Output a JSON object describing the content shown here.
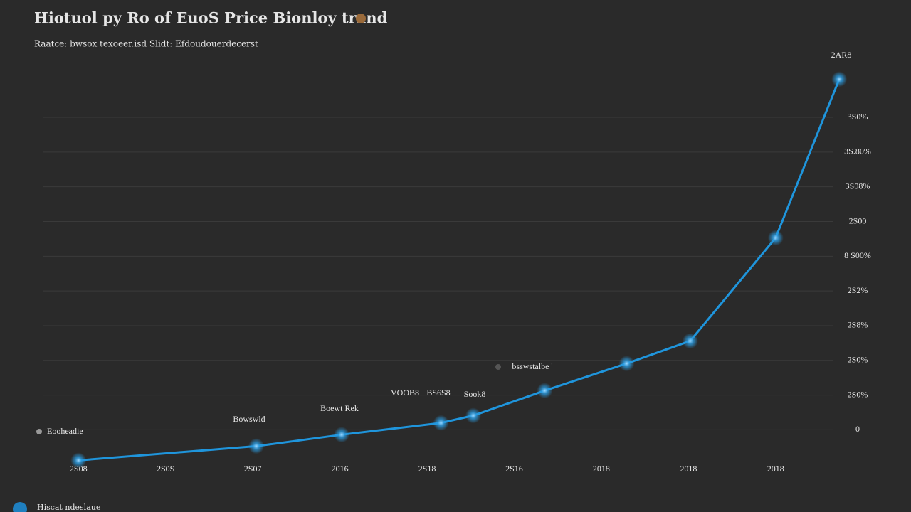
{
  "chart_data": {
    "type": "line",
    "title": "Hiotuol py Ro of EuoS Price Bionloy trand",
    "subtitle": "Raatce: bwsox texoeer.isd Slidt: Efdoudouerdecerst",
    "color": "#1f95dc",
    "grid": true,
    "x": [
      0,
      2.04,
      3.02,
      4.16,
      4.53,
      5.35,
      6.29,
      7.02,
      8,
      8.73
    ],
    "values": [
      -0.88,
      -0.47,
      -0.14,
      0.2,
      0.41,
      1.13,
      1.91,
      2.56,
      5.53,
      10.1
    ],
    "xlim": [
      -0.1,
      8.9
    ],
    "xticks": [
      {
        "value": 0,
        "label": "2S08"
      },
      {
        "value": 1,
        "label": "2S0S"
      },
      {
        "value": 2,
        "label": "2S07"
      },
      {
        "value": 3,
        "label": "2016"
      },
      {
        "value": 4,
        "label": "2S18"
      },
      {
        "value": 5,
        "label": "2S16"
      },
      {
        "value": 6,
        "label": "2018"
      },
      {
        "value": 7,
        "label": "2018"
      },
      {
        "value": 8,
        "label": "2018"
      }
    ],
    "ylim": [
      -1.2,
      11.5
    ],
    "yticks": [
      0,
      {
        "value": 1,
        "label": "2S0%"
      },
      {
        "value": 2,
        "label": "2S0%"
      },
      {
        "value": 3,
        "label": "2S8%"
      },
      {
        "value": 4,
        "label": "2S2%"
      },
      {
        "value": 5,
        "label": "8 S00%"
      },
      {
        "value": 6,
        "label": "2S00"
      },
      {
        "value": 7,
        "label": "3S08%"
      },
      {
        "value": 8,
        "label": "3S.80%"
      },
      {
        "value": 9,
        "label": "3S0%"
      }
    ],
    "annotations": [
      "Eooheadie",
      "Bowswld",
      "Boewt Rek",
      "VOOB8",
      "BS6S8",
      "Sook8",
      "bsswstalbe '",
      "2AR8"
    ],
    "footer": "Hiscat ndeslaue"
  }
}
